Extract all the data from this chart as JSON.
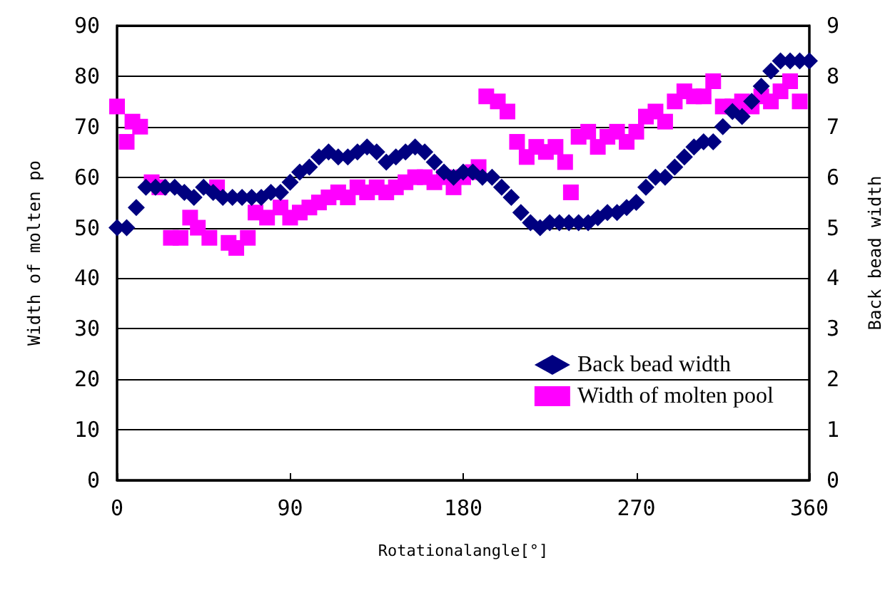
{
  "chart_data": {
    "type": "scatter",
    "xlabel": "Rotationalangle[°]",
    "ylabel": "Width of molten po",
    "y2label": "Back bead width",
    "xlim": [
      0,
      360
    ],
    "xticks": [
      0,
      90,
      180,
      270,
      360
    ],
    "ylim": [
      0,
      90
    ],
    "yticks": [
      0,
      10,
      20,
      30,
      40,
      50,
      60,
      70,
      80,
      90
    ],
    "y2lim": [
      0,
      9
    ],
    "y2ticks": [
      0,
      1,
      2,
      3,
      4,
      5,
      6,
      7,
      8,
      9
    ],
    "grid": "y",
    "legend": "bottom right",
    "series": [
      {
        "name": "Back bead width",
        "color": "#000080",
        "axis": "y2",
        "marker": "diamond",
        "x": [
          0,
          5,
          10,
          15,
          20,
          25,
          30,
          35,
          40,
          45,
          50,
          55,
          60,
          65,
          70,
          75,
          80,
          85,
          90,
          95,
          100,
          105,
          110,
          115,
          120,
          125,
          130,
          135,
          140,
          145,
          150,
          155,
          160,
          165,
          170,
          175,
          180,
          185,
          190,
          195,
          200,
          205,
          210,
          215,
          220,
          225,
          230,
          235,
          240,
          245,
          250,
          255,
          260,
          265,
          270,
          275,
          280,
          285,
          290,
          295,
          300,
          305,
          310,
          315,
          320,
          325,
          330,
          335,
          340,
          345,
          350,
          355,
          360
        ],
        "values": [
          5.0,
          5.0,
          5.4,
          5.8,
          5.8,
          5.8,
          5.8,
          5.7,
          5.6,
          5.8,
          5.7,
          5.6,
          5.6,
          5.6,
          5.6,
          5.6,
          5.7,
          5.7,
          5.9,
          6.1,
          6.2,
          6.4,
          6.5,
          6.4,
          6.4,
          6.5,
          6.6,
          6.5,
          6.3,
          6.4,
          6.5,
          6.6,
          6.5,
          6.3,
          6.1,
          6.0,
          6.1,
          6.1,
          6.0,
          6.0,
          5.8,
          5.6,
          5.3,
          5.1,
          5.0,
          5.1,
          5.1,
          5.1,
          5.1,
          5.1,
          5.2,
          5.3,
          5.3,
          5.4,
          5.5,
          5.8,
          6.0,
          6.0,
          6.2,
          6.4,
          6.6,
          6.7,
          6.7,
          7.0,
          7.3,
          7.2,
          7.5,
          7.8,
          8.1,
          8.3,
          8.3,
          8.3,
          8.3
        ]
      },
      {
        "name": "Width of molten pool",
        "color": "#ff00ff",
        "marker": "square",
        "x": [
          0,
          5,
          8,
          12,
          18,
          22,
          28,
          33,
          38,
          42,
          48,
          52,
          58,
          62,
          68,
          72,
          78,
          85,
          90,
          95,
          100,
          105,
          110,
          115,
          120,
          125,
          130,
          135,
          140,
          145,
          150,
          155,
          160,
          165,
          170,
          175,
          180,
          185,
          188,
          192,
          198,
          203,
          208,
          213,
          218,
          223,
          228,
          233,
          236,
          240,
          245,
          250,
          255,
          260,
          265,
          270,
          275,
          280,
          285,
          290,
          295,
          300,
          305,
          310,
          315,
          320,
          325,
          330,
          335,
          340,
          345,
          350,
          355
        ],
        "values": [
          74,
          67,
          71,
          70,
          59,
          58,
          48,
          48,
          52,
          50,
          48,
          58,
          47,
          46,
          48,
          53,
          52,
          54,
          52,
          53,
          54,
          55,
          56,
          57,
          56,
          58,
          57,
          58,
          57,
          58,
          59,
          60,
          60,
          59,
          60,
          58,
          60,
          61,
          62,
          76,
          75,
          73,
          67,
          64,
          66,
          65,
          66,
          63,
          57,
          68,
          69,
          66,
          68,
          69,
          67,
          69,
          72,
          73,
          71,
          75,
          77,
          76,
          76,
          79,
          74,
          74,
          75,
          74,
          76,
          75,
          77,
          79,
          75
        ]
      }
    ]
  }
}
